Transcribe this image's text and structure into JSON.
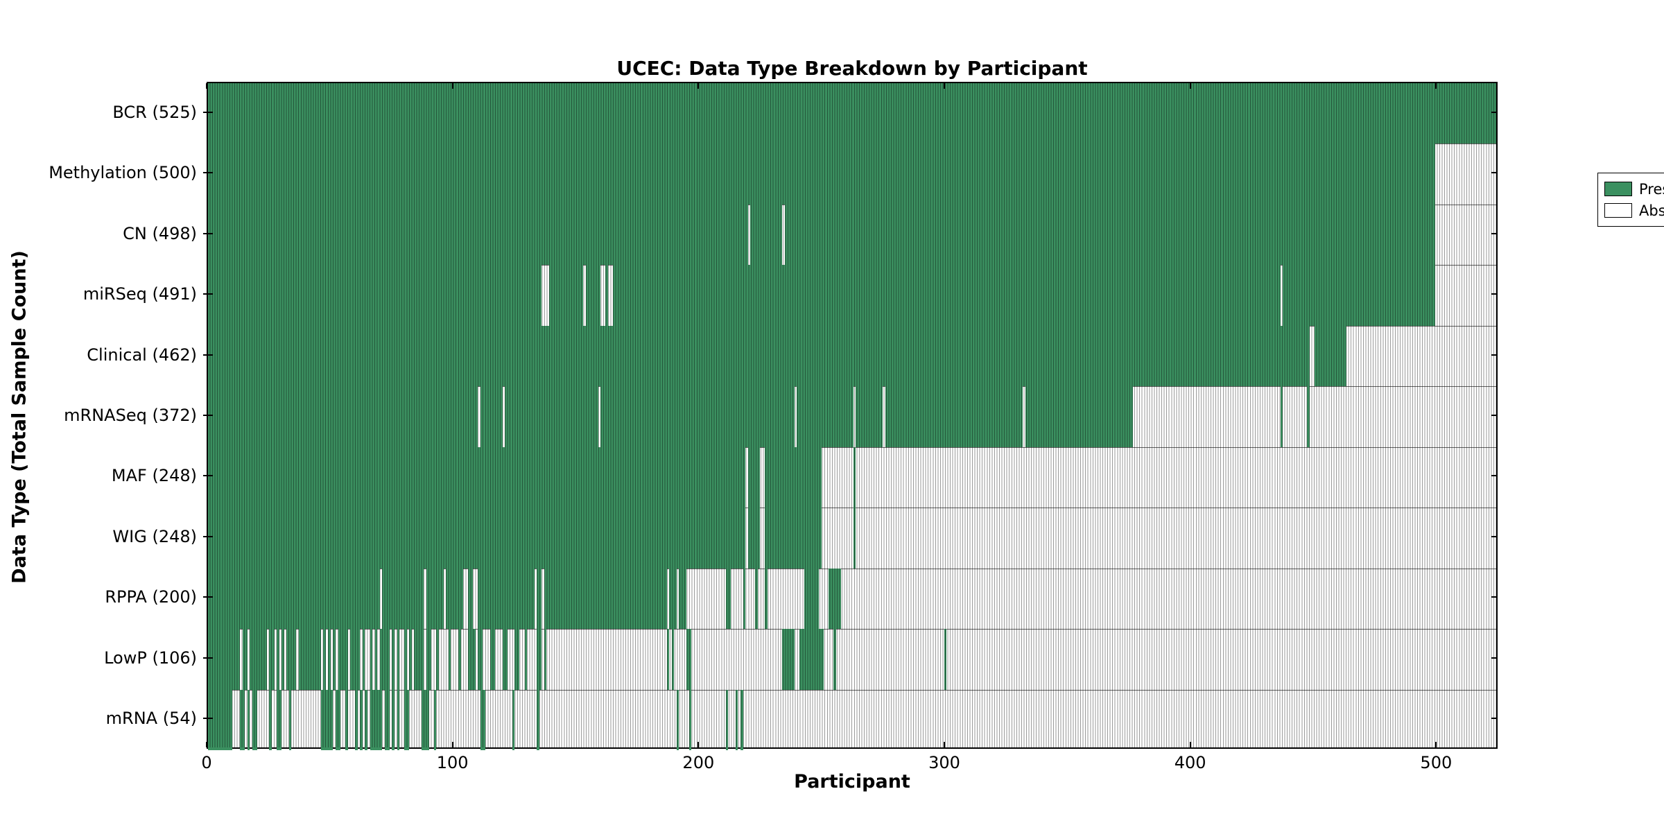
{
  "chart_data": {
    "type": "heatmap",
    "title": "UCEC: Data Type Breakdown by Participant",
    "xlabel": "Participant",
    "ylabel": "Data Type (Total Sample Count)",
    "xlim": [
      0,
      525
    ],
    "xticks": [
      0,
      100,
      200,
      300,
      400,
      500
    ],
    "grid": "horizontal-row-separators",
    "legend": {
      "position": "upper right",
      "present_label": "Present",
      "absent_label": "Absent"
    },
    "colors": {
      "present": "#3B9060",
      "absent": "#ffffff",
      "cell_edge_overlay": "rgba(0,0,0,0.40)",
      "row_separator": "rgba(0,0,0,0.62)",
      "spine": "#000000",
      "text": "#000000",
      "background": "#ffffff"
    },
    "rows": [
      {
        "name": "BCR",
        "count": 525,
        "label": "BCR (525)",
        "present_intervals": [
          [
            0,
            525
          ]
        ]
      },
      {
        "name": "Methylation",
        "count": 500,
        "label": "Methylation (500)",
        "present_intervals": [
          [
            0,
            500
          ]
        ]
      },
      {
        "name": "CN",
        "count": 498,
        "label": "CN (498)",
        "present_intervals": [
          [
            0,
            220
          ],
          [
            221,
            234
          ],
          [
            235,
            500
          ]
        ]
      },
      {
        "name": "miRSeq",
        "count": 491,
        "label": "miRSeq (491)",
        "present_intervals": [
          [
            0,
            136
          ],
          [
            139,
            153
          ],
          [
            154,
            160
          ],
          [
            162,
            163
          ],
          [
            165,
            437
          ],
          [
            438,
            500
          ]
        ]
      },
      {
        "name": "Clinical",
        "count": 462,
        "label": "Clinical (462)",
        "present_intervals": [
          [
            0,
            449
          ],
          [
            451,
            464
          ]
        ]
      },
      {
        "name": "mRNASeq",
        "count": 372,
        "label": "mRNASeq (372)",
        "present_intervals": [
          [
            0,
            110
          ],
          [
            111,
            120
          ],
          [
            121,
            159
          ],
          [
            160,
            239
          ],
          [
            240,
            263
          ],
          [
            264,
            275
          ],
          [
            276,
            332
          ],
          [
            333,
            377
          ],
          [
            437,
            438
          ],
          [
            448,
            449
          ]
        ]
      },
      {
        "name": "MAF",
        "count": 248,
        "label": "MAF (248)",
        "present_intervals": [
          [
            0,
            219
          ],
          [
            220,
            225
          ],
          [
            227,
            250
          ],
          [
            263,
            264
          ]
        ]
      },
      {
        "name": "WIG",
        "count": 248,
        "label": "WIG (248)",
        "present_intervals": [
          [
            0,
            219
          ],
          [
            220,
            225
          ],
          [
            227,
            250
          ],
          [
            263,
            264
          ]
        ]
      },
      {
        "name": "RPPA",
        "count": 200,
        "label": "RPPA (200)",
        "present_intervals": [
          [
            0,
            70
          ],
          [
            71,
            88
          ],
          [
            89,
            96
          ],
          [
            97,
            104
          ],
          [
            106,
            108
          ],
          [
            110,
            133
          ],
          [
            134,
            136
          ],
          [
            137,
            187
          ],
          [
            188,
            191
          ],
          [
            192,
            195
          ],
          [
            211,
            213
          ],
          [
            218,
            219
          ],
          [
            223,
            224
          ],
          [
            227,
            228
          ],
          [
            243,
            249
          ],
          [
            253,
            258
          ]
        ]
      },
      {
        "name": "LowP",
        "count": 106,
        "label": "LowP (106)",
        "present_intervals": [
          [
            0,
            13
          ],
          [
            14,
            16
          ],
          [
            17,
            24
          ],
          [
            25,
            27
          ],
          [
            28,
            29
          ],
          [
            30,
            31
          ],
          [
            32,
            36
          ],
          [
            37,
            46
          ],
          [
            47,
            48
          ],
          [
            49,
            50
          ],
          [
            51,
            52
          ],
          [
            53,
            57
          ],
          [
            58,
            62
          ],
          [
            63,
            64
          ],
          [
            66,
            67
          ],
          [
            68,
            69
          ],
          [
            70,
            74
          ],
          [
            75,
            76
          ],
          [
            77,
            78
          ],
          [
            80,
            81
          ],
          [
            82,
            83
          ],
          [
            84,
            88
          ],
          [
            89,
            91
          ],
          [
            93,
            94
          ],
          [
            98,
            99
          ],
          [
            102,
            103
          ],
          [
            106,
            109
          ],
          [
            110,
            112
          ],
          [
            115,
            117
          ],
          [
            120,
            122
          ],
          [
            125,
            127
          ],
          [
            129,
            130
          ],
          [
            134,
            136
          ],
          [
            137,
            138
          ],
          [
            187,
            188
          ],
          [
            189,
            190
          ],
          [
            195,
            197
          ],
          [
            234,
            239
          ],
          [
            241,
            251
          ],
          [
            255,
            256
          ],
          [
            300,
            301
          ]
        ]
      },
      {
        "name": "mRNA",
        "count": 54,
        "label": "mRNA (54)",
        "present_intervals": [
          [
            0,
            10
          ],
          [
            13,
            15
          ],
          [
            16,
            17
          ],
          [
            18,
            20
          ],
          [
            25,
            26
          ],
          [
            28,
            30
          ],
          [
            33,
            34
          ],
          [
            46,
            51
          ],
          [
            52,
            54
          ],
          [
            56,
            57
          ],
          [
            60,
            61
          ],
          [
            62,
            63
          ],
          [
            64,
            65
          ],
          [
            66,
            71
          ],
          [
            72,
            74
          ],
          [
            75,
            76
          ],
          [
            77,
            78
          ],
          [
            80,
            82
          ],
          [
            87,
            90
          ],
          [
            92,
            93
          ],
          [
            111,
            113
          ],
          [
            124,
            125
          ],
          [
            134,
            135
          ],
          [
            191,
            192
          ],
          [
            196,
            197
          ],
          [
            211,
            212
          ],
          [
            215,
            216
          ],
          [
            217,
            218
          ]
        ]
      }
    ]
  }
}
